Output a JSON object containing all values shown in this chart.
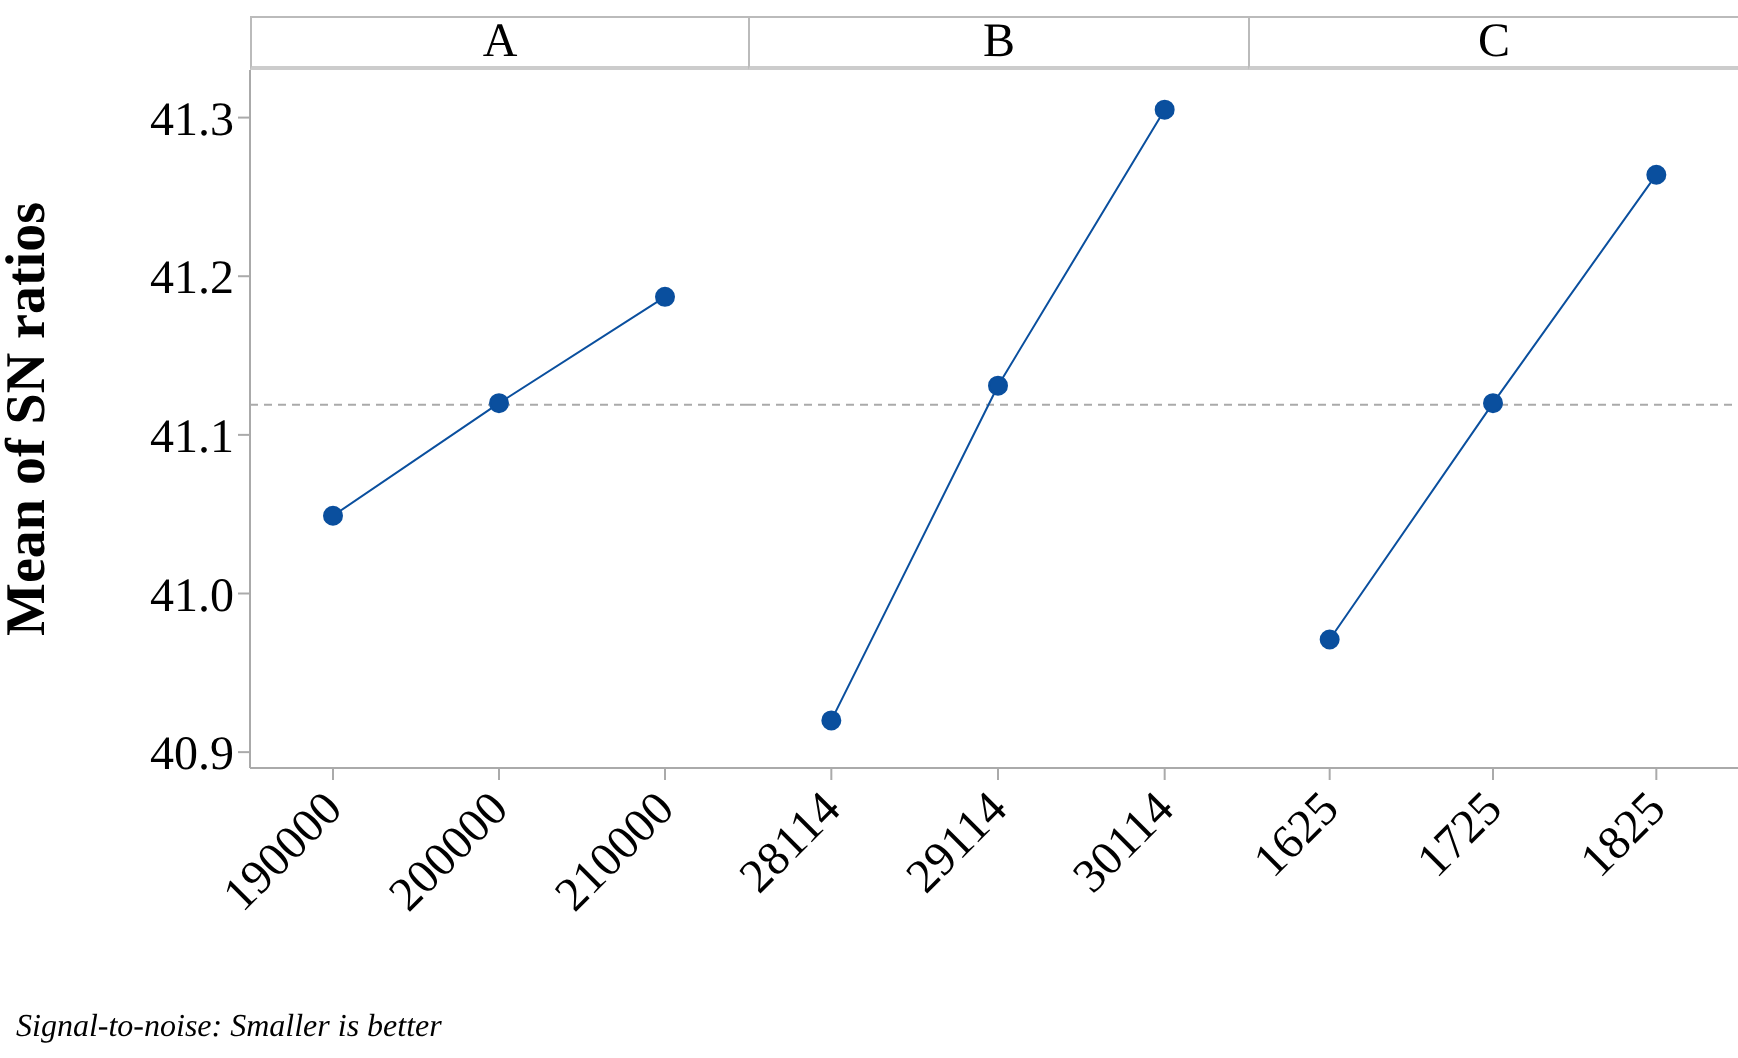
{
  "chart_data": [
    {
      "type": "line",
      "title": "A",
      "ylabel": "Mean of SN ratios",
      "categories": [
        "190000",
        "200000",
        "210000"
      ],
      "series": [
        {
          "color": "#0a4f9e",
          "values": [
            41.049,
            41.12,
            41.187
          ]
        }
      ],
      "ylim": [
        40.89,
        41.33
      ],
      "yticks": [
        40.9,
        {
          "value": 41,
          "label": "41.0"
        },
        41.1,
        41.2,
        41.3
      ],
      "marker": "circle",
      "line_style": "solid",
      "ref_lines": [
        {
          "axis": "y",
          "value": 41.119,
          "color": "#aaaaaa",
          "line_style": "dashed"
        }
      ],
      "annotations": [
        "Signal-to-noise: Smaller is better"
      ]
    },
    {
      "type": "line",
      "title": "B",
      "categories": [
        "28114",
        "29114",
        "30114"
      ],
      "series": [
        {
          "color": "#0a4f9e",
          "values": [
            40.92,
            41.131,
            41.305
          ]
        }
      ],
      "ylim": [
        40.89,
        41.33
      ],
      "tick_labels": "x",
      "marker": "circle",
      "line_style": "solid",
      "ref_lines": [
        {
          "axis": "y",
          "value": 41.119,
          "color": "#aaaaaa",
          "line_style": "dashed"
        }
      ]
    },
    {
      "type": "line",
      "title": "C",
      "categories": [
        "1625",
        "1725",
        "1825"
      ],
      "series": [
        {
          "color": "#0a4f9e",
          "values": [
            40.971,
            41.12,
            41.264
          ]
        }
      ],
      "ylim": [
        40.89,
        41.33
      ],
      "tick_labels": "x",
      "marker": "circle",
      "line_style": "solid",
      "ref_lines": [
        {
          "axis": "y",
          "value": 41.119,
          "color": "#aaaaaa",
          "line_style": "dashed"
        }
      ]
    }
  ]
}
